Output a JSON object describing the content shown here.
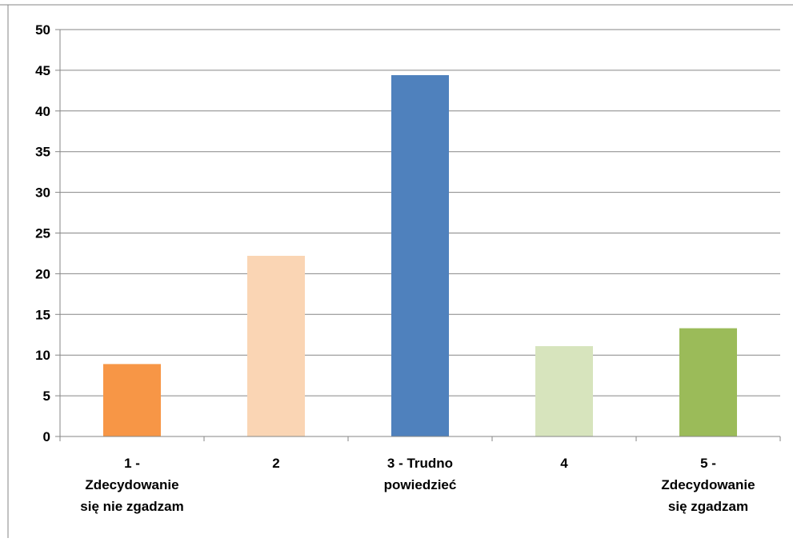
{
  "chart_data": {
    "type": "bar",
    "title": "",
    "xlabel": "",
    "ylabel": "",
    "categories": [
      [
        "1 -",
        "Zdecydowanie",
        "się nie zgadzam"
      ],
      [
        "2"
      ],
      [
        "3 - Trudno",
        "powiedzieć"
      ],
      [
        "4"
      ],
      [
        "5 -",
        "Zdecydowanie",
        "się zgadzam"
      ]
    ],
    "values": [
      8.9,
      22.2,
      44.4,
      11.1,
      13.3
    ],
    "colors": [
      "#f79646",
      "#fad5b4",
      "#4f81bd",
      "#d7e4bd",
      "#9bbb59"
    ],
    "ylim": [
      0,
      50
    ],
    "yticks": [
      "0",
      "5",
      "10",
      "15",
      "20",
      "25",
      "30",
      "35",
      "40",
      "45",
      "50"
    ],
    "grid": true,
    "legend": "none"
  }
}
